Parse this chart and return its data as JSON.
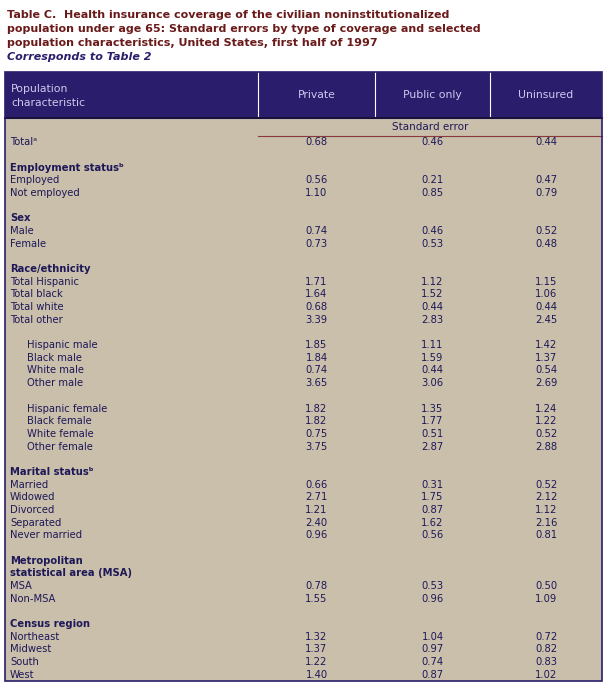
{
  "title_line1": "Table C.  Health insurance coverage of the civilian noninstitutionalized",
  "title_line2": "population under age 65: Standard errors by type of coverage and selected",
  "title_line3": "population characteristics, United States, first half of 1997",
  "title_line4": "Corresponds to Table 2",
  "header_col0": [
    "Population",
    "characteristic"
  ],
  "header_col1": "Private",
  "header_col2": "Public only",
  "header_col3": "Uninsured",
  "subheader": "Standard error",
  "bg_color": "#c9bfab",
  "header_bg": "#2a1d6b",
  "header_text_color": "#d0c8f0",
  "title_color": "#6b1a1a",
  "title4_color": "#2a1d6b",
  "body_text_color": "#1e1858",
  "line_color": "#8b3a3a",
  "rows": [
    {
      "label": "Totalᵃ",
      "indent": 0,
      "bold": false,
      "private": "0.68",
      "public": "0.46",
      "uninsured": "0.44"
    },
    {
      "label": "",
      "indent": 0,
      "bold": false,
      "private": "",
      "public": "",
      "uninsured": ""
    },
    {
      "label": "Employment statusᵇ",
      "indent": 0,
      "bold": true,
      "private": "",
      "public": "",
      "uninsured": ""
    },
    {
      "label": "Employed",
      "indent": 0,
      "bold": false,
      "private": "0.56",
      "public": "0.21",
      "uninsured": "0.47"
    },
    {
      "label": "Not employed",
      "indent": 0,
      "bold": false,
      "private": "1.10",
      "public": "0.85",
      "uninsured": "0.79"
    },
    {
      "label": "",
      "indent": 0,
      "bold": false,
      "private": "",
      "public": "",
      "uninsured": ""
    },
    {
      "label": "Sex",
      "indent": 0,
      "bold": true,
      "private": "",
      "public": "",
      "uninsured": ""
    },
    {
      "label": "Male",
      "indent": 0,
      "bold": false,
      "private": "0.74",
      "public": "0.46",
      "uninsured": "0.52"
    },
    {
      "label": "Female",
      "indent": 0,
      "bold": false,
      "private": "0.73",
      "public": "0.53",
      "uninsured": "0.48"
    },
    {
      "label": "",
      "indent": 0,
      "bold": false,
      "private": "",
      "public": "",
      "uninsured": ""
    },
    {
      "label": "Race/ethnicity",
      "indent": 0,
      "bold": true,
      "private": "",
      "public": "",
      "uninsured": ""
    },
    {
      "label": "Total Hispanic",
      "indent": 0,
      "bold": false,
      "private": "1.71",
      "public": "1.12",
      "uninsured": "1.15"
    },
    {
      "label": "Total black",
      "indent": 0,
      "bold": false,
      "private": "1.64",
      "public": "1.52",
      "uninsured": "1.06"
    },
    {
      "label": "Total white",
      "indent": 0,
      "bold": false,
      "private": "0.68",
      "public": "0.44",
      "uninsured": "0.44"
    },
    {
      "label": "Total other",
      "indent": 0,
      "bold": false,
      "private": "3.39",
      "public": "2.83",
      "uninsured": "2.45"
    },
    {
      "label": "",
      "indent": 0,
      "bold": false,
      "private": "",
      "public": "",
      "uninsured": ""
    },
    {
      "label": "Hispanic male",
      "indent": 1,
      "bold": false,
      "private": "1.85",
      "public": "1.11",
      "uninsured": "1.42"
    },
    {
      "label": "Black male",
      "indent": 1,
      "bold": false,
      "private": "1.84",
      "public": "1.59",
      "uninsured": "1.37"
    },
    {
      "label": "White male",
      "indent": 1,
      "bold": false,
      "private": "0.74",
      "public": "0.44",
      "uninsured": "0.54"
    },
    {
      "label": "Other male",
      "indent": 1,
      "bold": false,
      "private": "3.65",
      "public": "3.06",
      "uninsured": "2.69"
    },
    {
      "label": "",
      "indent": 0,
      "bold": false,
      "private": "",
      "public": "",
      "uninsured": ""
    },
    {
      "label": "Hispanic female",
      "indent": 1,
      "bold": false,
      "private": "1.82",
      "public": "1.35",
      "uninsured": "1.24"
    },
    {
      "label": "Black female",
      "indent": 1,
      "bold": false,
      "private": "1.82",
      "public": "1.77",
      "uninsured": "1.22"
    },
    {
      "label": "White female",
      "indent": 1,
      "bold": false,
      "private": "0.75",
      "public": "0.51",
      "uninsured": "0.52"
    },
    {
      "label": "Other female",
      "indent": 1,
      "bold": false,
      "private": "3.75",
      "public": "2.87",
      "uninsured": "2.88"
    },
    {
      "label": "",
      "indent": 0,
      "bold": false,
      "private": "",
      "public": "",
      "uninsured": ""
    },
    {
      "label": "Marital statusᵇ",
      "indent": 0,
      "bold": true,
      "private": "",
      "public": "",
      "uninsured": ""
    },
    {
      "label": "Married",
      "indent": 0,
      "bold": false,
      "private": "0.66",
      "public": "0.31",
      "uninsured": "0.52"
    },
    {
      "label": "Widowed",
      "indent": 0,
      "bold": false,
      "private": "2.71",
      "public": "1.75",
      "uninsured": "2.12"
    },
    {
      "label": "Divorced",
      "indent": 0,
      "bold": false,
      "private": "1.21",
      "public": "0.87",
      "uninsured": "1.12"
    },
    {
      "label": "Separated",
      "indent": 0,
      "bold": false,
      "private": "2.40",
      "public": "1.62",
      "uninsured": "2.16"
    },
    {
      "label": "Never married",
      "indent": 0,
      "bold": false,
      "private": "0.96",
      "public": "0.56",
      "uninsured": "0.81"
    },
    {
      "label": "",
      "indent": 0,
      "bold": false,
      "private": "",
      "public": "",
      "uninsured": ""
    },
    {
      "label": "Metropolitan",
      "indent": 0,
      "bold": true,
      "private": "",
      "public": "",
      "uninsured": ""
    },
    {
      "label": "statistical area (MSA)",
      "indent": 0,
      "bold": true,
      "private": "",
      "public": "",
      "uninsured": ""
    },
    {
      "label": "MSA",
      "indent": 0,
      "bold": false,
      "private": "0.78",
      "public": "0.53",
      "uninsured": "0.50"
    },
    {
      "label": "Non-MSA",
      "indent": 0,
      "bold": false,
      "private": "1.55",
      "public": "0.96",
      "uninsured": "1.09"
    },
    {
      "label": "",
      "indent": 0,
      "bold": false,
      "private": "",
      "public": "",
      "uninsured": ""
    },
    {
      "label": "Census region",
      "indent": 0,
      "bold": true,
      "private": "",
      "public": "",
      "uninsured": ""
    },
    {
      "label": "Northeast",
      "indent": 0,
      "bold": false,
      "private": "1.32",
      "public": "1.04",
      "uninsured": "0.72"
    },
    {
      "label": "Midwest",
      "indent": 0,
      "bold": false,
      "private": "1.37",
      "public": "0.97",
      "uninsured": "0.82"
    },
    {
      "label": "South",
      "indent": 0,
      "bold": false,
      "private": "1.22",
      "public": "0.74",
      "uninsured": "0.83"
    },
    {
      "label": "West",
      "indent": 0,
      "bold": false,
      "private": "1.40",
      "public": "0.87",
      "uninsured": "1.02"
    }
  ]
}
